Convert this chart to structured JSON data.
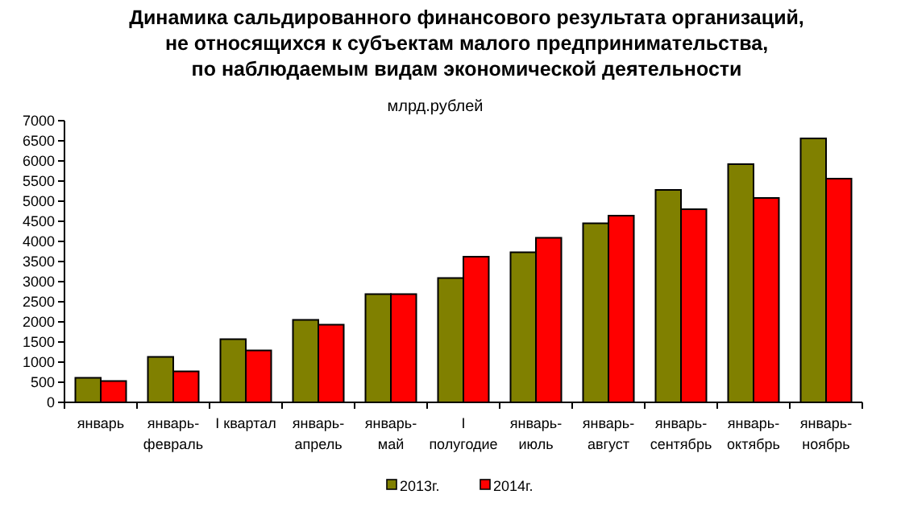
{
  "chart_data": {
    "type": "bar",
    "title": "Динамика сальдированного финансового результата организаций,\nне относящихся к субъектам малого предпринимательства,\nпо наблюдаемым видам экономической деятельности",
    "ylabel": "млрд.рублей",
    "categories": [
      "январь",
      "январь-февраль",
      "I квартал",
      "январь-апрель",
      "январь-май",
      "I полугодие",
      "январь-июль",
      "январь-август",
      "январь-сентябрь",
      "январь-октябрь",
      "январь-ноябрь"
    ],
    "series": [
      {
        "name": "2013г.",
        "color": "#808000",
        "values": [
          610,
          1130,
          1570,
          2050,
          2690,
          3090,
          3730,
          4450,
          5280,
          5920,
          6560
        ]
      },
      {
        "name": "2014г.",
        "color": "#ff0000",
        "values": [
          530,
          770,
          1290,
          1930,
          2690,
          3620,
          4090,
          4640,
          4800,
          5080,
          5560
        ]
      }
    ],
    "ylim": [
      0,
      7000
    ],
    "yticks": [
      0,
      500,
      1000,
      1500,
      2000,
      2500,
      3000,
      3500,
      4000,
      4500,
      5000,
      5500,
      6000,
      6500,
      7000
    ],
    "grid": false,
    "legend": "bottom"
  }
}
